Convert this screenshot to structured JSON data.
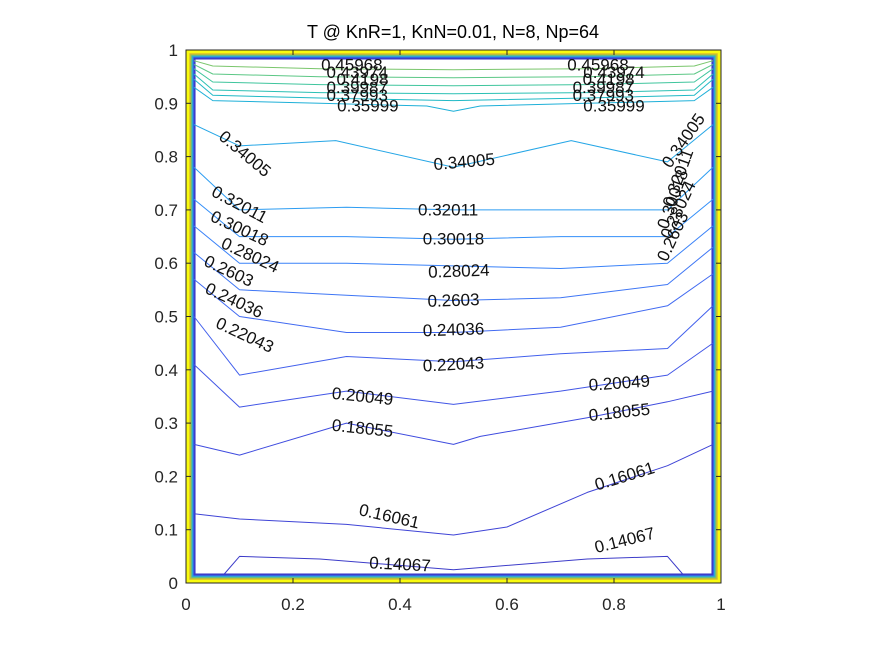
{
  "chart_data": {
    "type": "contour",
    "title": "T @ KnR=1, KnN=0.01, N=8, Np=64",
    "xlabel": "",
    "ylabel": "",
    "xlim": [
      0,
      1
    ],
    "ylim": [
      0,
      1
    ],
    "xticks": [
      "0",
      "0.2",
      "0.4",
      "0.6",
      "0.8",
      "1"
    ],
    "yticks": [
      "0",
      "0.1",
      "0.2",
      "0.3",
      "0.4",
      "0.5",
      "0.6",
      "0.7",
      "0.8",
      "0.9",
      "1"
    ],
    "colormap": "parula",
    "levels": [
      {
        "value": 0.14067,
        "label": "0.14067",
        "color": "#3d3cc9",
        "points": [
          [
            0.07,
            0.015
          ],
          [
            0.1,
            0.05
          ],
          [
            0.25,
            0.045
          ],
          [
            0.5,
            0.025
          ],
          [
            0.75,
            0.045
          ],
          [
            0.9,
            0.05
          ],
          [
            0.93,
            0.015
          ]
        ]
      },
      {
        "value": 0.16061,
        "label": "0.16061",
        "color": "#3f44d6",
        "points": [
          [
            0.015,
            0.13
          ],
          [
            0.1,
            0.12
          ],
          [
            0.3,
            0.11
          ],
          [
            0.5,
            0.09
          ],
          [
            0.6,
            0.105
          ],
          [
            0.75,
            0.17
          ],
          [
            0.9,
            0.22
          ],
          [
            0.985,
            0.26
          ]
        ]
      },
      {
        "value": 0.18055,
        "label": "0.18055",
        "color": "#3f4cdf",
        "points": [
          [
            0.015,
            0.26
          ],
          [
            0.1,
            0.24
          ],
          [
            0.3,
            0.3
          ],
          [
            0.5,
            0.26
          ],
          [
            0.55,
            0.275
          ],
          [
            0.75,
            0.31
          ],
          [
            0.9,
            0.34
          ],
          [
            0.985,
            0.36
          ]
        ]
      },
      {
        "value": 0.20049,
        "label": "0.20049",
        "color": "#4256e6",
        "points": [
          [
            0.015,
            0.41
          ],
          [
            0.1,
            0.33
          ],
          [
            0.3,
            0.36
          ],
          [
            0.5,
            0.335
          ],
          [
            0.7,
            0.36
          ],
          [
            0.9,
            0.39
          ],
          [
            0.985,
            0.45
          ]
        ]
      },
      {
        "value": 0.22043,
        "label": "0.22043",
        "color": "#4260ec",
        "points": [
          [
            0.015,
            0.5
          ],
          [
            0.1,
            0.39
          ],
          [
            0.3,
            0.425
          ],
          [
            0.5,
            0.415
          ],
          [
            0.7,
            0.43
          ],
          [
            0.9,
            0.44
          ],
          [
            0.985,
            0.52
          ]
        ]
      },
      {
        "value": 0.24036,
        "label": "0.24036",
        "color": "#416af1",
        "points": [
          [
            0.015,
            0.57
          ],
          [
            0.1,
            0.5
          ],
          [
            0.3,
            0.47
          ],
          [
            0.5,
            0.47
          ],
          [
            0.7,
            0.48
          ],
          [
            0.9,
            0.52
          ],
          [
            0.985,
            0.58
          ]
        ]
      },
      {
        "value": 0.2603,
        "label": "0.2603",
        "color": "#3e76f5",
        "points": [
          [
            0.015,
            0.62
          ],
          [
            0.1,
            0.55
          ],
          [
            0.3,
            0.54
          ],
          [
            0.5,
            0.53
          ],
          [
            0.7,
            0.535
          ],
          [
            0.9,
            0.56
          ],
          [
            0.985,
            0.63
          ]
        ]
      },
      {
        "value": 0.28024,
        "label": "0.28024",
        "color": "#3a82f8",
        "points": [
          [
            0.015,
            0.67
          ],
          [
            0.1,
            0.6
          ],
          [
            0.3,
            0.6
          ],
          [
            0.5,
            0.595
          ],
          [
            0.7,
            0.59
          ],
          [
            0.9,
            0.6
          ],
          [
            0.985,
            0.67
          ]
        ]
      },
      {
        "value": 0.30018,
        "label": "0.30018",
        "color": "#338ff9",
        "points": [
          [
            0.015,
            0.72
          ],
          [
            0.1,
            0.65
          ],
          [
            0.3,
            0.65
          ],
          [
            0.5,
            0.645
          ],
          [
            0.7,
            0.65
          ],
          [
            0.9,
            0.65
          ],
          [
            0.985,
            0.72
          ]
        ]
      },
      {
        "value": 0.32011,
        "label": "0.32011",
        "color": "#2c9cf2",
        "points": [
          [
            0.015,
            0.78
          ],
          [
            0.1,
            0.7
          ],
          [
            0.3,
            0.705
          ],
          [
            0.5,
            0.7
          ],
          [
            0.7,
            0.7
          ],
          [
            0.9,
            0.7
          ],
          [
            0.985,
            0.78
          ]
        ]
      },
      {
        "value": 0.34005,
        "label": "0.34005",
        "color": "#25a6e6",
        "points": [
          [
            0.015,
            0.86
          ],
          [
            0.1,
            0.82
          ],
          [
            0.28,
            0.83
          ],
          [
            0.5,
            0.78
          ],
          [
            0.72,
            0.83
          ],
          [
            0.9,
            0.79
          ],
          [
            0.985,
            0.86
          ]
        ]
      },
      {
        "value": 0.35999,
        "label": "0.35999",
        "color": "#1fb0d8",
        "points": [
          [
            0.015,
            0.93
          ],
          [
            0.05,
            0.905
          ],
          [
            0.25,
            0.9
          ],
          [
            0.45,
            0.895
          ],
          [
            0.5,
            0.885
          ],
          [
            0.55,
            0.895
          ],
          [
            0.75,
            0.9
          ],
          [
            0.95,
            0.905
          ],
          [
            0.985,
            0.93
          ]
        ]
      },
      {
        "value": 0.37993,
        "label": "0.37993",
        "color": "#20b9c6",
        "points": [
          [
            0.015,
            0.945
          ],
          [
            0.05,
            0.915
          ],
          [
            0.25,
            0.91
          ],
          [
            0.5,
            0.905
          ],
          [
            0.75,
            0.91
          ],
          [
            0.95,
            0.915
          ],
          [
            0.985,
            0.945
          ]
        ]
      },
      {
        "value": 0.39987,
        "label": "0.39987",
        "color": "#2bc0b4",
        "points": [
          [
            0.015,
            0.955
          ],
          [
            0.05,
            0.925
          ],
          [
            0.25,
            0.92
          ],
          [
            0.5,
            0.918
          ],
          [
            0.75,
            0.92
          ],
          [
            0.95,
            0.925
          ],
          [
            0.985,
            0.955
          ]
        ]
      },
      {
        "value": 0.4198,
        "label": "0.4198",
        "color": "#3fc59d",
        "points": [
          [
            0.015,
            0.965
          ],
          [
            0.05,
            0.94
          ],
          [
            0.25,
            0.935
          ],
          [
            0.5,
            0.933
          ],
          [
            0.75,
            0.935
          ],
          [
            0.95,
            0.94
          ],
          [
            0.985,
            0.965
          ]
        ]
      },
      {
        "value": 0.43974,
        "label": "0.43974",
        "color": "#5bc785",
        "points": [
          [
            0.015,
            0.973
          ],
          [
            0.05,
            0.955
          ],
          [
            0.25,
            0.95
          ],
          [
            0.5,
            0.948
          ],
          [
            0.75,
            0.95
          ],
          [
            0.95,
            0.955
          ],
          [
            0.985,
            0.973
          ]
        ]
      },
      {
        "value": 0.45968,
        "label": "0.45968",
        "color": "#7ac66c",
        "points": [
          [
            0.015,
            0.98
          ],
          [
            0.05,
            0.97
          ],
          [
            0.25,
            0.965
          ],
          [
            0.5,
            0.963
          ],
          [
            0.75,
            0.965
          ],
          [
            0.95,
            0.97
          ],
          [
            0.985,
            0.98
          ]
        ]
      }
    ],
    "labels": [
      {
        "text": "0.14067",
        "x": 0.4,
        "y": 0.035,
        "angle": 3
      },
      {
        "text": "0.14067",
        "x": 0.82,
        "y": 0.08,
        "angle": -14
      },
      {
        "text": "0.16061",
        "x": 0.38,
        "y": 0.125,
        "angle": 13
      },
      {
        "text": "0.16061",
        "x": 0.82,
        "y": 0.2,
        "angle": -17
      },
      {
        "text": "0.18055",
        "x": 0.33,
        "y": 0.29,
        "angle": 6
      },
      {
        "text": "0.18055",
        "x": 0.81,
        "y": 0.32,
        "angle": -6
      },
      {
        "text": "0.20049",
        "x": 0.33,
        "y": 0.35,
        "angle": 6
      },
      {
        "text": "0.20049",
        "x": 0.81,
        "y": 0.375,
        "angle": -4
      },
      {
        "text": "0.22043",
        "x": 0.5,
        "y": 0.41,
        "angle": -3
      },
      {
        "text": "0.22043",
        "x": 0.11,
        "y": 0.465,
        "angle": 25
      },
      {
        "text": "0.24036",
        "x": 0.5,
        "y": 0.475,
        "angle": -2
      },
      {
        "text": "0.24036",
        "x": 0.09,
        "y": 0.53,
        "angle": 25
      },
      {
        "text": "0.2603",
        "x": 0.5,
        "y": 0.53,
        "angle": -2
      },
      {
        "text": "0.2603",
        "x": 0.08,
        "y": 0.585,
        "angle": 25
      },
      {
        "text": "0.28024",
        "x": 0.51,
        "y": 0.585,
        "angle": -2
      },
      {
        "text": "0.28024",
        "x": 0.12,
        "y": 0.615,
        "angle": 25
      },
      {
        "text": "0.30018",
        "x": 0.5,
        "y": 0.645,
        "angle": 0
      },
      {
        "text": "0.30018",
        "x": 0.1,
        "y": 0.665,
        "angle": 25
      },
      {
        "text": "0.32011",
        "x": 0.49,
        "y": 0.7,
        "angle": 0
      },
      {
        "text": "0.32011",
        "x": 0.1,
        "y": 0.71,
        "angle": 28
      },
      {
        "text": "0.34005",
        "x": 0.52,
        "y": 0.79,
        "angle": -5
      },
      {
        "text": "0.34005",
        "x": 0.11,
        "y": 0.805,
        "angle": 40
      },
      {
        "text": "0.34005",
        "x": 0.93,
        "y": 0.83,
        "angle": -55
      },
      {
        "text": "0.32011",
        "x": 0.92,
        "y": 0.76,
        "angle": -70
      },
      {
        "text": "0.30018",
        "x": 0.91,
        "y": 0.72,
        "angle": -70
      },
      {
        "text": "0.28024",
        "x": 0.92,
        "y": 0.7,
        "angle": -65
      },
      {
        "text": "0.2603",
        "x": 0.91,
        "y": 0.65,
        "angle": -65
      },
      {
        "text": "0.35999",
        "x": 0.34,
        "y": 0.895,
        "angle": 0
      },
      {
        "text": "0.35999",
        "x": 0.8,
        "y": 0.895,
        "angle": 0
      },
      {
        "text": "0.37993",
        "x": 0.32,
        "y": 0.915,
        "angle": 0
      },
      {
        "text": "0.37993",
        "x": 0.78,
        "y": 0.915,
        "angle": 0
      },
      {
        "text": "0.39987",
        "x": 0.32,
        "y": 0.93,
        "angle": 0
      },
      {
        "text": "0.39987",
        "x": 0.78,
        "y": 0.93,
        "angle": 0
      },
      {
        "text": "0.4198",
        "x": 0.33,
        "y": 0.945,
        "angle": 0
      },
      {
        "text": "0.4198",
        "x": 0.79,
        "y": 0.945,
        "angle": 0
      },
      {
        "text": "0.43974",
        "x": 0.32,
        "y": 0.958,
        "angle": 0
      },
      {
        "text": "0.43974",
        "x": 0.8,
        "y": 0.958,
        "angle": 0
      },
      {
        "text": "0.45968",
        "x": 0.31,
        "y": 0.972,
        "angle": 0
      },
      {
        "text": "0.45968",
        "x": 0.77,
        "y": 0.972,
        "angle": 0
      }
    ]
  }
}
